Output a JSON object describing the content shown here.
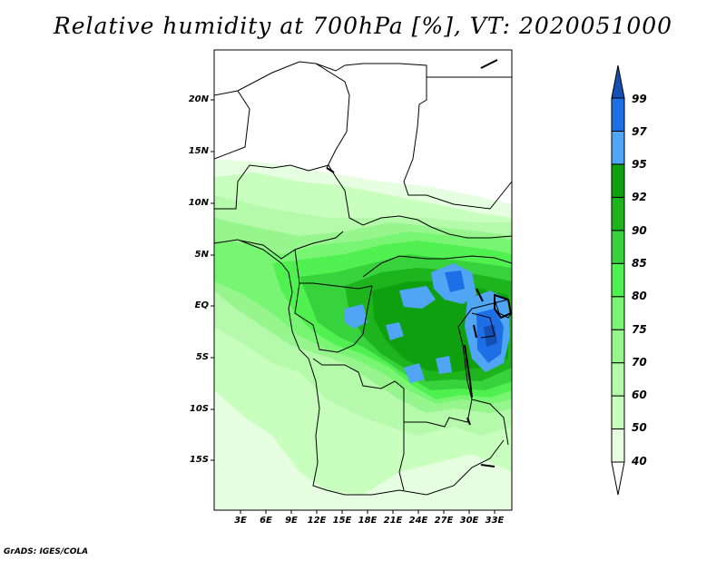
{
  "title": "Relative humidity at 700hPa [%], VT: 2020051000",
  "credit": "GrADS: IGES/COLA",
  "map": {
    "variable": "Relative humidity",
    "level": "700hPa",
    "units": "%",
    "valid_time": "2020051000",
    "lat_labels": [
      "20N",
      "15N",
      "10N",
      "5N",
      "EQ",
      "5S",
      "10S",
      "15S"
    ],
    "lon_labels": [
      "3E",
      "6E",
      "9E",
      "12E",
      "15E",
      "18E",
      "21E",
      "24E",
      "27E",
      "30E",
      "33E"
    ]
  },
  "colorbar": {
    "labels": [
      "99",
      "97",
      "95",
      "92",
      "90",
      "85",
      "80",
      "75",
      "70",
      "60",
      "50",
      "40"
    ],
    "levels": [
      40,
      50,
      60,
      70,
      75,
      80,
      85,
      90,
      92,
      95,
      97,
      99
    ],
    "colors": [
      "#ffffff",
      "#e6ffe1",
      "#c8ffbe",
      "#b4faaa",
      "#96f58c",
      "#78f573",
      "#50f050",
      "#37d23c",
      "#1eb41e",
      "#0fa00f",
      "#50a5f5",
      "#1e6ee6",
      "#1450b4"
    ]
  }
}
